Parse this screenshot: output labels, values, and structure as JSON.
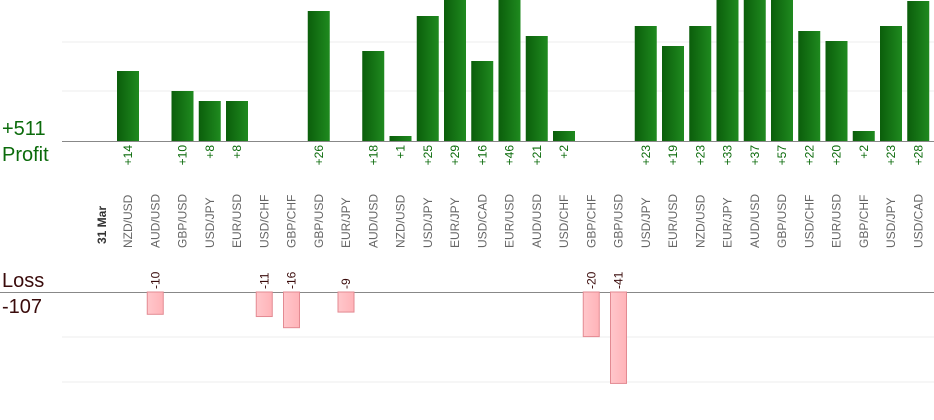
{
  "summary": {
    "profit_total": "+511",
    "profit_label": "Profit",
    "loss_label": "Loss",
    "loss_total": "-107"
  },
  "colors": {
    "profit_dark": "#0b5e0b",
    "profit_light": "#1f8a1f",
    "profit_text": "#0b6b0b",
    "loss_fill": "#ffb3b8",
    "loss_stroke": "#e38a92",
    "loss_text": "#3a0b0b",
    "axis": "#888888",
    "grid": "#eeeeee",
    "label": "#666666"
  },
  "chart_data": {
    "type": "bar",
    "date_label": "31 Mar",
    "categories": [
      "NZD/USD",
      "AUD/USD",
      "GBP/USD",
      "USD/JPY",
      "EUR/USD",
      "USD/CHF",
      "GBP/CHF",
      "GBP/USD",
      "EUR/JPY",
      "AUD/USD",
      "NZD/USD",
      "USD/JPY",
      "EUR/JPY",
      "USD/CAD",
      "EUR/USD",
      "AUD/USD",
      "USD/CHF",
      "GBP/CHF",
      "GBP/USD",
      "USD/JPY",
      "EUR/USD",
      "NZD/USD",
      "EUR/JPY",
      "AUD/USD",
      "GBP/USD",
      "USD/CHF",
      "EUR/USD",
      "GBP/CHF",
      "USD/JPY",
      "USD/CAD"
    ],
    "series": [
      {
        "values": [
          14,
          0,
          10,
          8,
          8,
          0,
          0,
          26,
          0,
          18,
          1,
          25,
          29,
          16,
          46,
          21,
          2,
          0,
          0,
          23,
          19,
          23,
          33,
          37,
          57,
          22,
          20,
          2,
          23,
          28
        ],
        "labels": [
          "+14",
          "",
          "+10",
          "+8",
          "+8",
          "",
          "",
          "+26",
          "",
          "+18",
          "+1",
          "+25",
          "+29",
          "+16",
          "+46",
          "+21",
          "+2",
          "",
          "",
          "+23",
          "+19",
          "+23",
          "+33",
          "+37",
          "+57",
          "+22",
          "+20",
          "+2",
          "+23",
          "+28"
        ]
      },
      {
        "values": [
          0,
          -10,
          0,
          0,
          0,
          -11,
          -16,
          0,
          -9,
          0,
          0,
          0,
          0,
          0,
          0,
          0,
          0,
          -20,
          -41,
          0,
          0,
          0,
          0,
          0,
          0,
          0,
          0,
          0,
          0,
          0
        ],
        "labels": [
          "",
          "-10",
          "",
          "",
          "",
          "-11",
          "-16",
          "",
          "-9",
          "",
          "",
          "",
          "",
          "",
          "",
          "",
          "",
          "-20",
          "-41",
          "",
          "",
          "",
          "",
          "",
          "",
          "",
          "",
          "",
          "",
          ""
        ]
      }
    ],
    "grid": true
  }
}
